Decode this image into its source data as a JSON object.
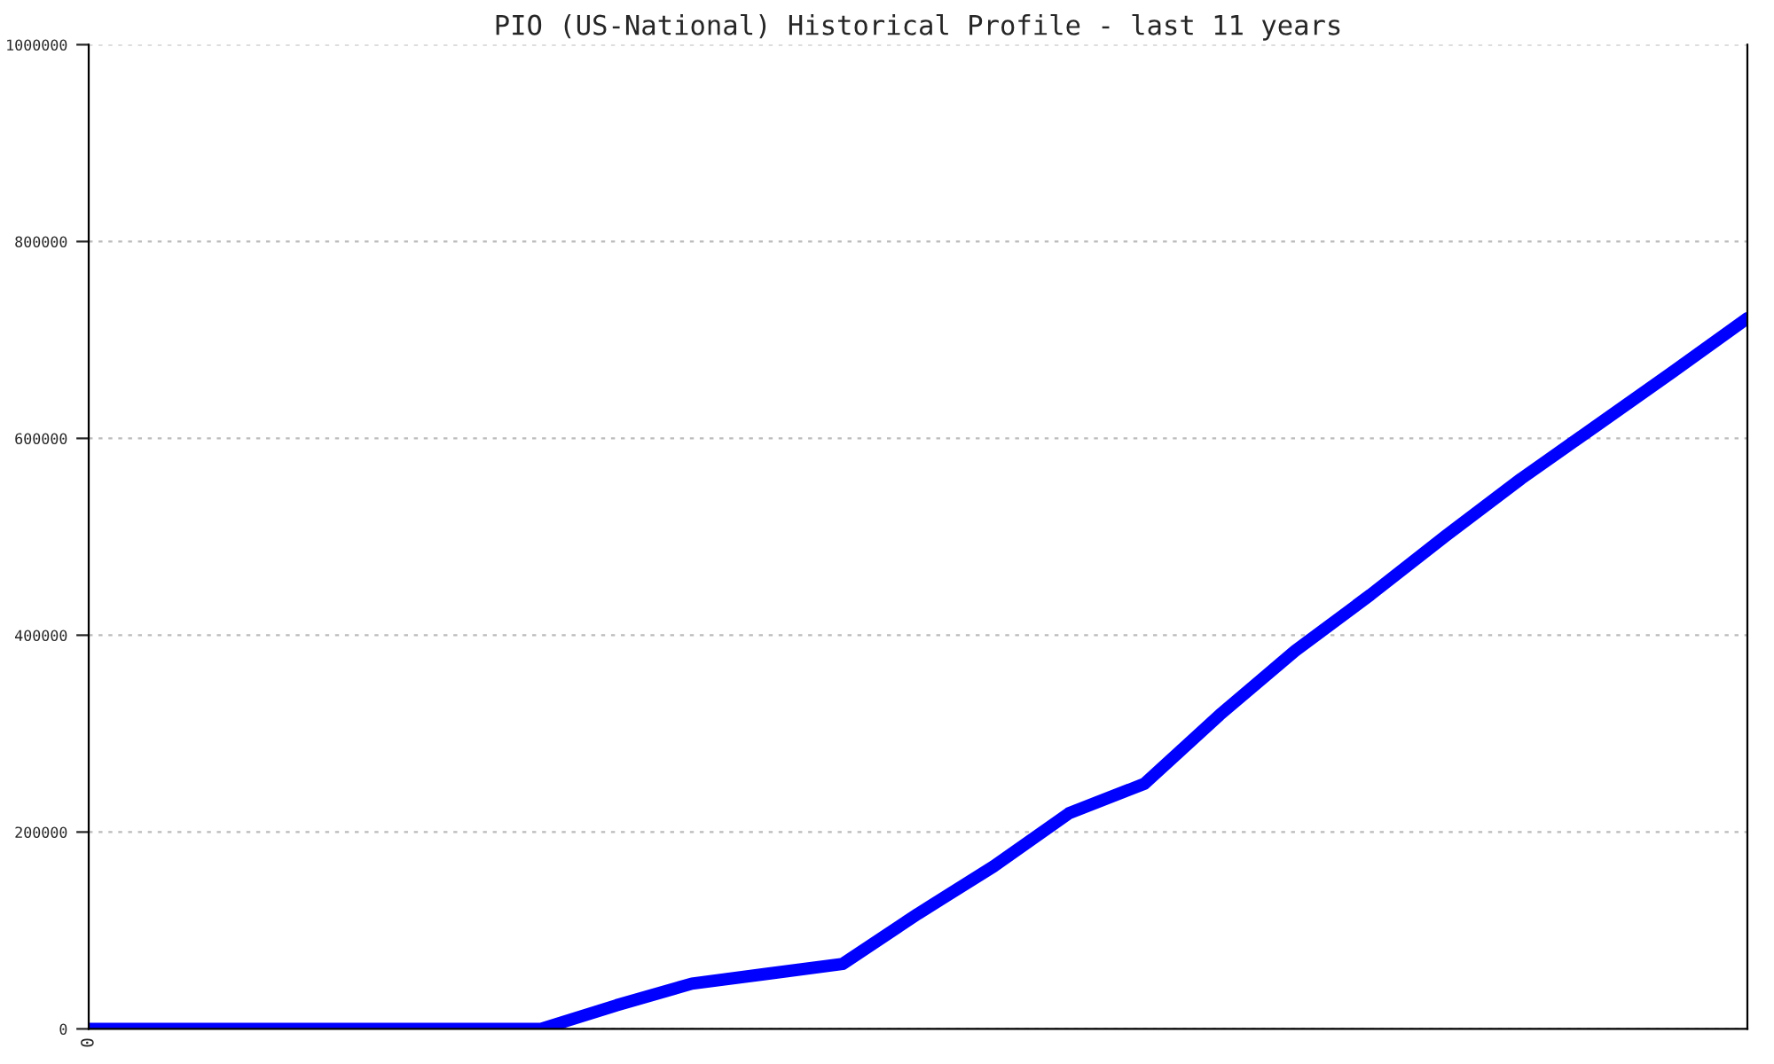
{
  "chart_data": {
    "type": "line",
    "title": "PIO (US-National) Historical Profile - last 11 years",
    "categories": [
      "0",
      null,
      null,
      null,
      null,
      null,
      null,
      null,
      null,
      null,
      null,
      null,
      null,
      null,
      null,
      null,
      null,
      null,
      null,
      null,
      null,
      null,
      null
    ],
    "series": [
      {
        "color": "#0000ff",
        "values": [
          0,
          0,
          0,
          0,
          0,
          0,
          0,
          24000,
          46000,
          56000,
          66000,
          117000,
          165000,
          219000,
          249000,
          319000,
          384000,
          441000,
          501000,
          559000,
          613000,
          667000,
          722000
        ]
      }
    ],
    "ylim": [
      0,
      1000000
    ],
    "yticks": [
      0,
      200000,
      400000,
      600000,
      800000,
      1000000
    ],
    "grid": "y",
    "legend": false,
    "marker": "none",
    "line_style": "solid"
  }
}
